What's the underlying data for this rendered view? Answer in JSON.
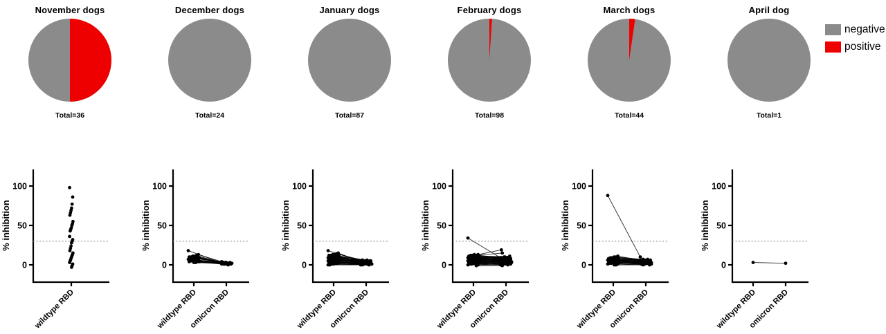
{
  "legend": {
    "items": [
      {
        "label": "negative",
        "color": "#8B8B8B"
      },
      {
        "label": "positive",
        "color": "#EE0000"
      }
    ]
  },
  "chart_data": {
    "type": "pie+scatter-paired",
    "description_title": "",
    "colors": {
      "negative": "#8B8B8B",
      "positive": "#EE0000",
      "points": "#000000",
      "threshold": "#8a8a8a"
    },
    "y_axis": {
      "label": "% inhibition",
      "ticks": [
        0,
        50,
        100
      ],
      "range": [
        -22,
        121
      ]
    },
    "threshold": 30,
    "categories": [
      "wildtype RBD",
      "omicron RBD"
    ],
    "panels": [
      {
        "title": "November dogs",
        "total_label": "Total=36",
        "pie": {
          "negative": 18,
          "positive": 18
        },
        "scatter": {
          "categories": [
            "wildtype RBD"
          ],
          "wildtype": [
            98,
            86,
            77,
            72,
            69,
            66,
            63,
            55,
            52,
            50,
            47,
            45,
            43,
            36,
            32,
            30,
            28,
            24,
            21,
            18,
            15,
            13,
            11,
            9,
            7,
            5,
            3,
            1,
            -1,
            -3
          ],
          "omicron": null
        }
      },
      {
        "title": "December dogs",
        "total_label": "Total=24",
        "pie": {
          "negative": 24,
          "positive": 0
        },
        "scatter": {
          "categories": [
            "wildtype RBD",
            "omicron RBD"
          ],
          "wildtype": [
            18,
            13,
            12,
            11,
            11,
            10,
            10,
            9,
            9,
            8,
            8,
            7,
            7,
            7,
            6,
            6,
            5,
            5,
            5,
            4,
            4,
            4,
            3,
            3
          ],
          "omicron": [
            3,
            4,
            2,
            3,
            1,
            2,
            3,
            1,
            2,
            2,
            3,
            1,
            2,
            3,
            1,
            2,
            1,
            2,
            3,
            1,
            2,
            0,
            1,
            2
          ]
        }
      },
      {
        "title": "January dogs",
        "total_label": "Total=87",
        "pie": {
          "negative": 87,
          "positive": 0
        },
        "scatter": {
          "categories": [
            "wildtype RBD",
            "omicron RBD"
          ],
          "wildtype": [
            18,
            15,
            14,
            13,
            13,
            12,
            12,
            11,
            11,
            11,
            10,
            10,
            10,
            9,
            9,
            9,
            8,
            8,
            8,
            8,
            7,
            7,
            7,
            6,
            6,
            6,
            5,
            5,
            5,
            4,
            4,
            4,
            3,
            3,
            2,
            2,
            1,
            1,
            0,
            0
          ],
          "omicron": [
            5,
            4,
            6,
            3,
            5,
            2,
            4,
            6,
            3,
            2,
            5,
            4,
            1,
            3,
            2,
            6,
            4,
            2,
            5,
            3,
            1,
            4,
            2,
            3,
            5,
            1,
            2,
            4,
            0,
            3,
            1,
            2,
            4,
            1,
            3,
            0,
            2,
            1,
            1,
            0
          ]
        }
      },
      {
        "title": "February dogs",
        "total_label": "Total=98",
        "pie": {
          "negative": 97,
          "positive": 1
        },
        "scatter": {
          "categories": [
            "wildtype RBD",
            "omicron RBD"
          ],
          "wildtype": [
            34,
            13,
            12,
            13,
            12,
            12,
            11,
            11,
            10,
            10,
            10,
            9,
            9,
            9,
            8,
            8,
            8,
            8,
            7,
            7,
            7,
            7,
            6,
            6,
            6,
            5,
            5,
            5,
            4,
            4,
            4,
            3,
            3,
            3,
            2,
            2,
            2,
            1,
            1,
            0,
            0,
            -1
          ],
          "omicron": [
            9,
            19,
            15,
            8,
            7,
            10,
            6,
            9,
            8,
            5,
            11,
            7,
            4,
            9,
            6,
            8,
            3,
            10,
            5,
            7,
            2,
            9,
            4,
            6,
            8,
            3,
            5,
            7,
            2,
            4,
            6,
            1,
            3,
            5,
            0,
            2,
            4,
            1,
            3,
            0,
            2,
            -1
          ]
        }
      },
      {
        "title": "March dogs",
        "total_label": "Total=44",
        "pie": {
          "negative": 43,
          "positive": 1
        },
        "scatter": {
          "categories": [
            "wildtype RBD",
            "omicron RBD"
          ],
          "wildtype": [
            88,
            11,
            10,
            10,
            9,
            9,
            8,
            8,
            8,
            7,
            7,
            7,
            6,
            6,
            6,
            5,
            5,
            5,
            4,
            4,
            4,
            3,
            3,
            3,
            2,
            2,
            1,
            1,
            0,
            0
          ],
          "omicron": [
            10,
            6,
            5,
            7,
            4,
            6,
            3,
            5,
            7,
            2,
            4,
            6,
            3,
            5,
            1,
            4,
            2,
            6,
            1,
            3,
            5,
            2,
            4,
            0,
            3,
            1,
            2,
            4,
            1,
            0
          ]
        }
      },
      {
        "title": "April dog",
        "total_label": "Total=1",
        "pie": {
          "negative": 1,
          "positive": 0
        },
        "scatter": {
          "categories": [
            "wildtype RBD",
            "omicron RBD"
          ],
          "wildtype": [
            3
          ],
          "omicron": [
            2
          ]
        }
      }
    ]
  }
}
